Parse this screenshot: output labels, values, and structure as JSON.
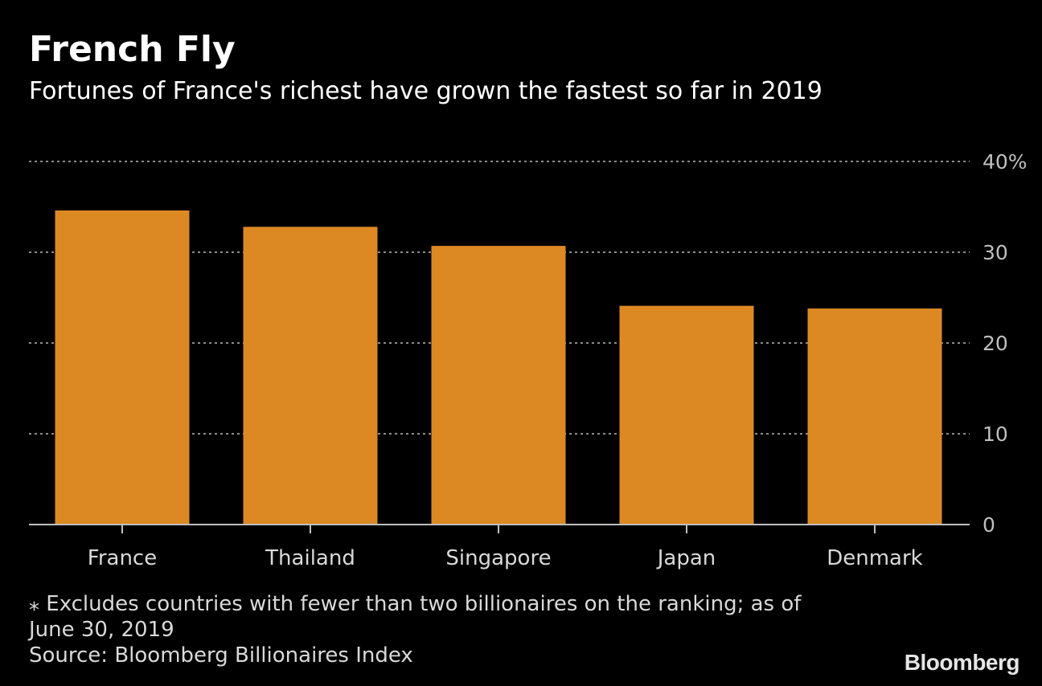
{
  "title": "French Fly",
  "subtitle": "Fortunes of France's richest have grown the fastest so far in 2019",
  "footnote": {
    "note_line1": "⁎ Excludes countries with fewer than two billionaires on the ranking; as of",
    "note_line2": "June 30, 2019",
    "source": "Source: Bloomberg Billionaires Index"
  },
  "logo": "Bloomberg",
  "colors": {
    "background": "#000000",
    "bar": "#dc8924",
    "grid": "#8c8c8c",
    "axis": "#bfbfbf"
  },
  "chart_data": {
    "type": "bar",
    "categories": [
      "France",
      "Thailand",
      "Singapore",
      "Japan",
      "Denmark"
    ],
    "values": [
      34.6,
      32.8,
      30.7,
      24.1,
      23.8
    ],
    "ylim": [
      0,
      40
    ],
    "yticks": [
      {
        "value": 0,
        "label": "0"
      },
      {
        "value": 10,
        "label": "10"
      },
      {
        "value": 20,
        "label": "20"
      },
      {
        "value": 30,
        "label": "30"
      },
      {
        "value": 40,
        "label": "40%"
      }
    ],
    "grid": true,
    "y_axis_side": "right",
    "xlabel": "",
    "ylabel": ""
  }
}
